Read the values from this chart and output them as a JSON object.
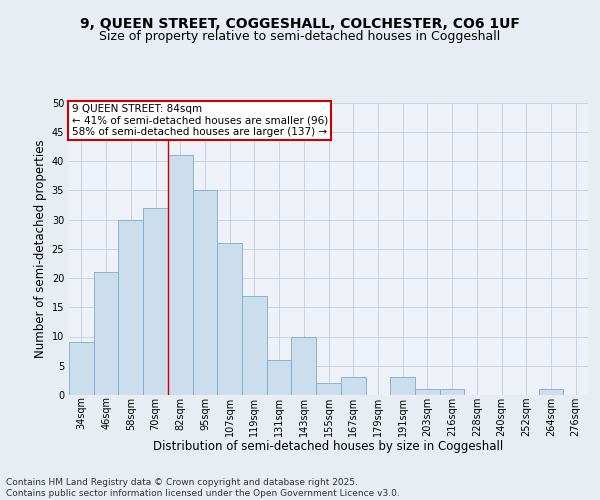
{
  "title1": "9, QUEEN STREET, COGGESHALL, COLCHESTER, CO6 1UF",
  "title2": "Size of property relative to semi-detached houses in Coggeshall",
  "xlabel": "Distribution of semi-detached houses by size in Coggeshall",
  "ylabel": "Number of semi-detached properties",
  "categories": [
    "34sqm",
    "46sqm",
    "58sqm",
    "70sqm",
    "82sqm",
    "95sqm",
    "107sqm",
    "119sqm",
    "131sqm",
    "143sqm",
    "155sqm",
    "167sqm",
    "179sqm",
    "191sqm",
    "203sqm",
    "216sqm",
    "228sqm",
    "240sqm",
    "252sqm",
    "264sqm",
    "276sqm"
  ],
  "values": [
    9,
    21,
    30,
    32,
    41,
    35,
    26,
    17,
    6,
    10,
    2,
    3,
    0,
    3,
    1,
    1,
    0,
    0,
    0,
    1,
    0
  ],
  "bar_color": "#ccdded",
  "bar_edge_color": "#7aaec8",
  "highlight_line_index": 4,
  "annotation_text": "9 QUEEN STREET: 84sqm\n← 41% of semi-detached houses are smaller (96)\n58% of semi-detached houses are larger (137) →",
  "annotation_box_color": "#ffffff",
  "annotation_border_color": "#cc0000",
  "red_line_color": "#cc0000",
  "grid_color": "#c0cfe0",
  "bg_color": "#e8edf4",
  "plot_bg_color": "#eef2f8",
  "footer": "Contains HM Land Registry data © Crown copyright and database right 2025.\nContains public sector information licensed under the Open Government Licence v3.0.",
  "ylim": [
    0,
    50
  ],
  "title_fontsize": 10,
  "subtitle_fontsize": 9,
  "axis_fontsize": 8.5,
  "tick_fontsize": 7,
  "footer_fontsize": 6.5,
  "ann_fontsize": 7.5
}
